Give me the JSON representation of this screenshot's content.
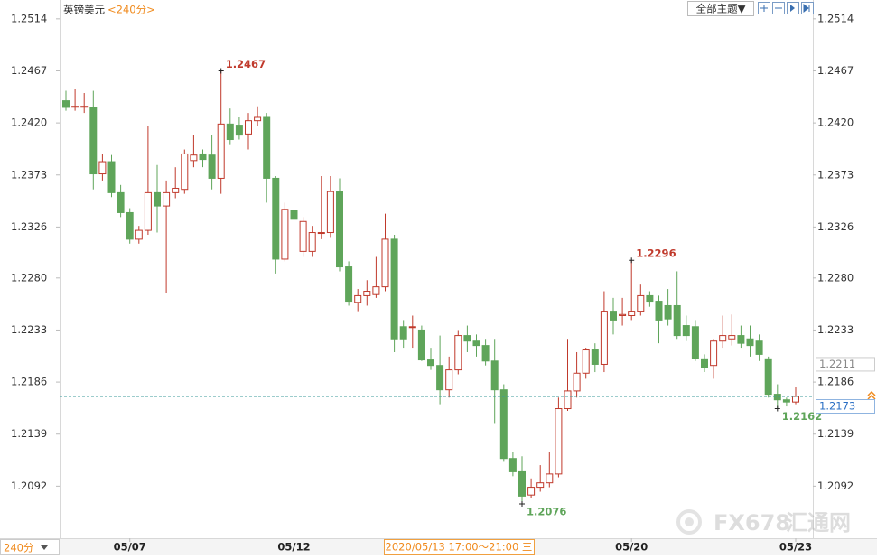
{
  "chart_data": {
    "type": "candlestick",
    "title": "英镑美元",
    "subtitle": "<240分>",
    "up_color": "#c0392b",
    "down_color": "#5fa55a",
    "ylim": [
      1.2045,
      1.2531
    ],
    "yticks": [
      1.2514,
      1.2467,
      {
        "value": 1.242,
        "label": "1.2420"
      },
      1.2373,
      1.2326,
      {
        "value": 1.228,
        "label": "1.2280"
      },
      1.2233,
      1.2186,
      1.2139,
      1.2092
    ],
    "grid": false,
    "ref_price": 1.2211,
    "categories": [
      null,
      null,
      null,
      null,
      null,
      null,
      null,
      "05/07",
      null,
      null,
      null,
      null,
      null,
      null,
      null,
      null,
      null,
      null,
      null,
      null,
      null,
      null,
      null,
      null,
      null,
      "05/12",
      null,
      null,
      null,
      null,
      null,
      null,
      null,
      null,
      null,
      null,
      null,
      null,
      null,
      null,
      null,
      null,
      null,
      null,
      null,
      null,
      null,
      null,
      null,
      null,
      null,
      null,
      null,
      null,
      null,
      null,
      null,
      null,
      null,
      null,
      null,
      null,
      "05/20",
      null,
      null,
      null,
      null,
      null,
      null,
      null,
      null,
      null,
      null,
      null,
      null,
      null,
      null,
      null,
      null,
      null,
      "05/23"
    ],
    "open": [
      1.244,
      1.2435,
      1.2435,
      1.2434,
      1.2374,
      1.2385,
      1.2357,
      1.2339,
      1.2315,
      1.2323,
      1.2357,
      1.2345,
      1.2357,
      1.236,
      1.2386,
      1.2392,
      1.2391,
      1.237,
      1.2419,
      1.2418,
      1.241,
      1.2422,
      1.2425,
      1.237,
      1.2297,
      1.2341,
      1.2304,
      1.2304,
      1.2321,
      1.2321,
      1.2358,
      1.229,
      1.2258,
      1.2264,
      1.2265,
      1.2272,
      1.2315,
      1.2236,
      1.2236,
      1.2233,
      1.2206,
      1.2201,
      1.2179,
      1.2197,
      1.2228,
      1.2223,
      1.2219,
      1.2205,
      1.2179,
      1.2117,
      1.2105,
      1.2084,
      1.2091,
      1.2095,
      1.2103,
      1.2162,
      1.2178,
      1.2194,
      1.2215,
      1.2202,
      1.225,
      1.2246,
      1.2246,
      1.225,
      1.2264,
      1.2259,
      1.2255,
      1.2255,
      1.2237,
      1.2236,
      1.2207,
      1.2201,
      1.2223,
      1.2225,
      1.2228,
      1.2225,
      1.2223,
      1.2207,
      1.2175,
      1.217,
      1.2168
    ],
    "high": [
      1.2449,
      1.2451,
      1.2447,
      1.2449,
      1.2392,
      1.2391,
      1.2364,
      1.2343,
      1.2327,
      1.2417,
      1.2382,
      1.2368,
      1.238,
      1.2396,
      1.2409,
      1.2396,
      1.2409,
      1.2467,
      1.2433,
      1.2425,
      1.2429,
      1.2435,
      1.2429,
      1.2372,
      1.2348,
      1.2345,
      1.2335,
      1.2327,
      1.2372,
      1.2372,
      1.237,
      1.2295,
      1.227,
      1.2278,
      1.2299,
      1.2338,
      1.2319,
      1.2242,
      1.2246,
      1.2237,
      1.2217,
      1.2228,
      1.2209,
      1.2233,
      1.2237,
      1.2229,
      1.2225,
      1.2225,
      1.2184,
      1.2123,
      1.2119,
      1.2099,
      1.2111,
      1.2123,
      1.2172,
      1.2225,
      1.2213,
      1.2217,
      1.2221,
      1.2268,
      1.2262,
      1.2262,
      1.2296,
      1.2274,
      1.2268,
      1.2264,
      1.227,
      1.2286,
      1.2246,
      1.2242,
      1.2211,
      1.2225,
      1.2246,
      1.2247,
      1.2237,
      1.2237,
      1.2229,
      1.2209,
      1.2184,
      1.2172,
      1.2182
    ],
    "low": [
      1.2431,
      1.2431,
      1.2429,
      1.236,
      1.2368,
      1.2353,
      1.2335,
      1.2311,
      1.2311,
      1.2319,
      1.2321,
      1.2266,
      1.2352,
      1.2356,
      1.238,
      1.238,
      1.236,
      1.2356,
      1.24,
      1.2405,
      1.2396,
      1.2417,
      1.2348,
      1.2284,
      1.2295,
      1.2319,
      1.2299,
      1.2299,
      1.2315,
      1.2317,
      1.2286,
      1.2255,
      1.225,
      1.2255,
      1.2262,
      1.2268,
      1.2213,
      1.2217,
      1.2217,
      1.2205,
      1.2197,
      1.2166,
      1.2172,
      1.2193,
      1.2213,
      1.2209,
      1.2201,
      1.2149,
      1.2114,
      1.2101,
      1.2076,
      1.2081,
      1.2087,
      1.2091,
      1.21,
      1.216,
      1.2172,
      1.2189,
      1.2195,
      1.2195,
      1.2229,
      1.2237,
      1.2242,
      1.2246,
      1.2254,
      1.2221,
      1.2237,
      1.2225,
      1.2223,
      1.2205,
      1.2195,
      1.2189,
      1.2217,
      1.2219,
      1.2217,
      1.2209,
      1.2205,
      1.2172,
      1.2162,
      1.2164,
      1.2166
    ],
    "close": [
      1.2434,
      1.2435,
      1.2435,
      1.2374,
      1.2385,
      1.2357,
      1.2339,
      1.2315,
      1.2323,
      1.2357,
      1.2345,
      1.2357,
      1.2361,
      1.2392,
      1.2391,
      1.2387,
      1.237,
      1.2419,
      1.2405,
      1.2409,
      1.2422,
      1.2425,
      1.237,
      1.2297,
      1.2342,
      1.2333,
      1.2331,
      1.2321,
      1.2321,
      1.2358,
      1.229,
      1.2259,
      1.2264,
      1.2268,
      1.2272,
      1.2315,
      1.2225,
      1.2225,
      1.2236,
      1.2206,
      1.2201,
      1.2179,
      1.2197,
      1.2228,
      1.2223,
      1.2219,
      1.2205,
      1.2179,
      1.2117,
      1.2105,
      1.2083,
      1.2091,
      1.2095,
      1.2103,
      1.2162,
      1.2178,
      1.2194,
      1.2215,
      1.2202,
      1.225,
      1.2242,
      1.2247,
      1.225,
      1.2264,
      1.2259,
      1.2242,
      1.2243,
      1.2228,
      1.2228,
      1.2207,
      1.2199,
      1.2223,
      1.2228,
      1.2228,
      1.2221,
      1.2219,
      1.2211,
      1.2175,
      1.217,
      1.2168,
      1.2173
    ]
  },
  "toolbar": {
    "theme_button": "全部主题▼",
    "period_select": "240分",
    "cursor_time": "2020/05/13 17:00～21:00 三",
    "watermark_fx": "FX678",
    "watermark_cn": "汇通网"
  }
}
